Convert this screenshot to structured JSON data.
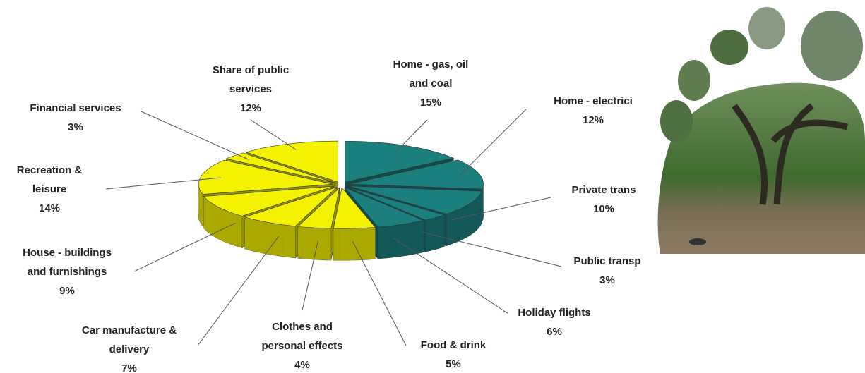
{
  "chart_data": {
    "type": "pie",
    "categories": [
      "Home - gas, oil\nand coal",
      "Home - electrici",
      "Private trans",
      "Public transp",
      "Holiday flights",
      "Food & drink",
      "Clothes and\npersonal effects",
      "Car manufacture &\ndelivery",
      "House - buildings\nand furnishings",
      "Recreation &\nleisure",
      "Financial services",
      "Share of public\nservices"
    ],
    "values": [
      15,
      12,
      10,
      3,
      6,
      5,
      4,
      7,
      9,
      14,
      3,
      12
    ],
    "value_labels": [
      "15%",
      "12%",
      "10%",
      "3%",
      "6%",
      "5%",
      "4%",
      "7%",
      "9%",
      "14%",
      "3%",
      "12%"
    ],
    "colors": [
      "#1b7f7d",
      "#1b7f7d",
      "#1b7f7d",
      "#1b7f7d",
      "#1b7f7d",
      "#f4f200",
      "#f4f200",
      "#f4f200",
      "#f4f200",
      "#f4f200",
      "#f4f200",
      "#f4f200"
    ]
  }
}
